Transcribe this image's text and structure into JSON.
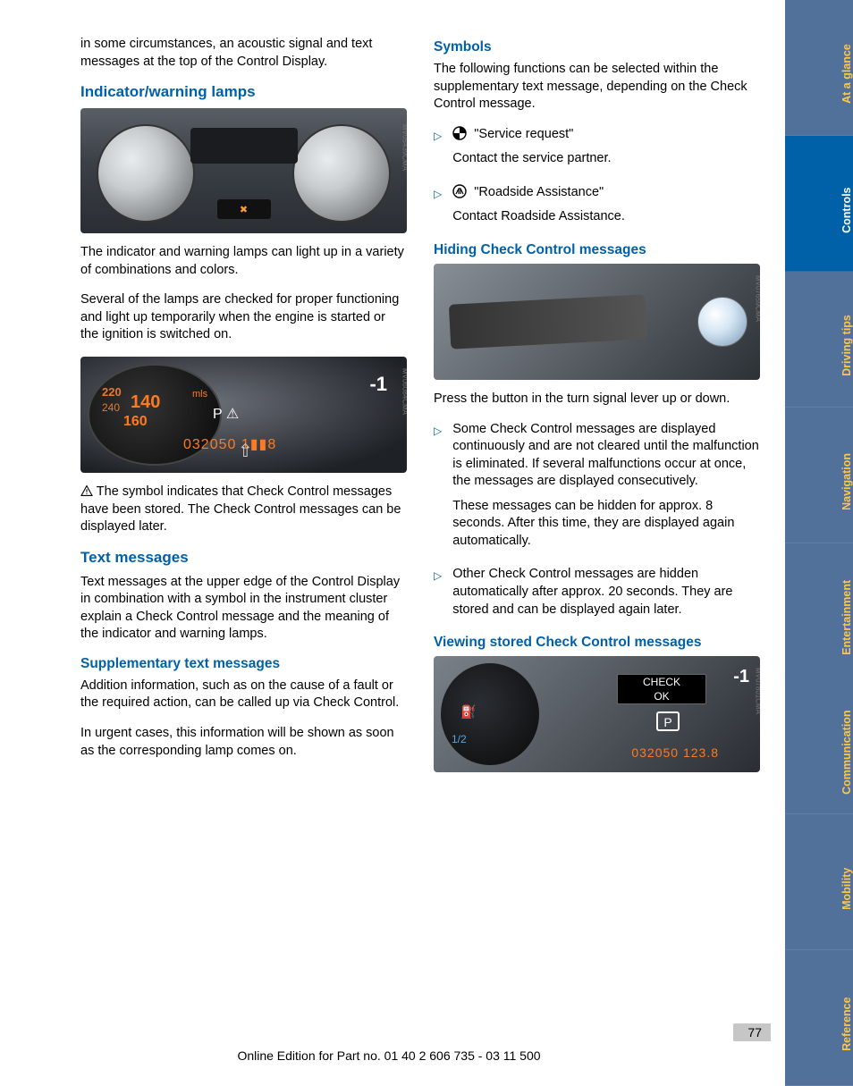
{
  "left": {
    "intro": "in some circumstances, an acoustic signal and text messages at the top of the Control Display.",
    "h_indicator": "Indicator/warning lamps",
    "img1_caption": "MV05439CMA",
    "p_indicator1": "The indicator and warning lamps can light up in a variety of combinations and colors.",
    "p_indicator2": "Several of the lamps are checked for proper functioning and light up temporarily when the engine is started or the ignition is switched on.",
    "img2_caption": "MV06084CMA",
    "p_checkcontrol": " The symbol indicates that Check Control messages have been stored. The Check Control messages can be displayed later.",
    "h_text": "Text messages",
    "p_text": "Text messages at the upper edge of the Control Display in combination with a symbol in the instrument cluster explain a Check Control message and the meaning of the indicator and warning lamps.",
    "h_supp": "Supplementary text messages",
    "p_supp1": "Addition information, such as on the cause of a fault or the required action, can be called up via Check Control.",
    "p_supp2": "In urgent cases, this information will be shown as soon as the corresponding lamp comes on."
  },
  "right": {
    "h_symbols": "Symbols",
    "p_symbols": "The following functions can be selected within the supplementary text message, depending on the Check Control message.",
    "sym1_label": "\"Service request\"",
    "sym1_desc": "Contact the service partner.",
    "sym2_label": "\"Roadside Assistance\"",
    "sym2_desc": "Contact Roadside Assistance.",
    "h_hiding": "Hiding Check Control messages",
    "img3_caption": "MV07659CMA",
    "p_hiding": "Press the button in the turn signal lever up or down.",
    "hide1a": "Some Check Control messages are displayed continuously and are not cleared until the malfunction is eliminated. If several malfunctions occur at once, the messages are displayed consecutively.",
    "hide1b": "These messages can be hidden for approx. 8 seconds. After this time, they are displayed again automatically.",
    "hide2": "Other Check Control messages are hidden automatically after approx. 20 seconds. They are stored and can be displayed again later.",
    "h_viewing": "Viewing stored Check Control messages",
    "img4_caption": "MV07801CMA"
  },
  "tabs": [
    {
      "label": "At a glance",
      "bg": "#52719a",
      "active": false
    },
    {
      "label": "Controls",
      "bg": "#0060a8",
      "active": true
    },
    {
      "label": "Driving tips",
      "bg": "#52719a",
      "active": false
    },
    {
      "label": "Navigation",
      "bg": "#52719a",
      "active": false
    },
    {
      "label": "Entertainment",
      "bg": "#52719a",
      "active": false
    },
    {
      "label": "Communication",
      "bg": "#52719a",
      "active": false
    },
    {
      "label": "Mobility",
      "bg": "#52719a",
      "active": false
    },
    {
      "label": "Reference",
      "bg": "#52719a",
      "active": false
    }
  ],
  "page_number": "77",
  "footer": "Online Edition for Part no. 01 40 2 606 735 - 03 11 500"
}
